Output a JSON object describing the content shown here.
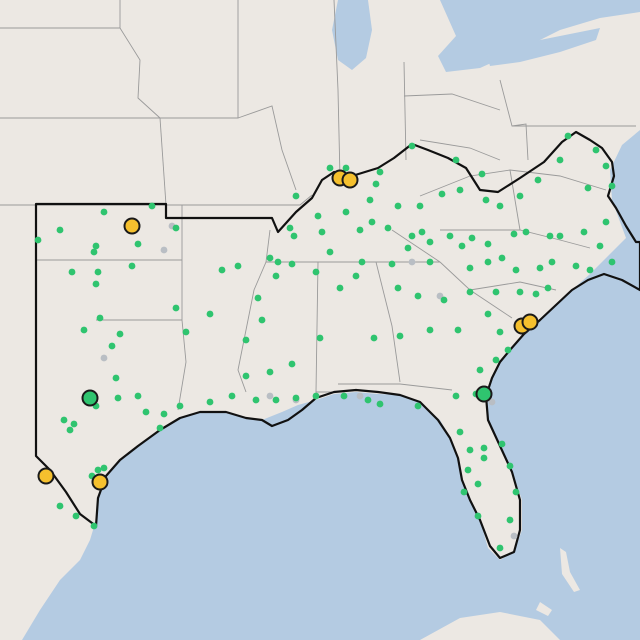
{
  "map": {
    "colors": {
      "land": "#ece8e3",
      "water": "#b4cbe2",
      "state_border": "#9a9a9a",
      "region_outline": "#111111",
      "small_point": "#2fc46f",
      "large_point_yellow": "#f5c02e",
      "large_point_green": "#2fc46f",
      "muted_point": "#b9bec4"
    },
    "highlighted_region": "southern-us-region",
    "point_categories": [
      "small-green",
      "large-yellow",
      "large-green",
      "muted-gray"
    ]
  }
}
